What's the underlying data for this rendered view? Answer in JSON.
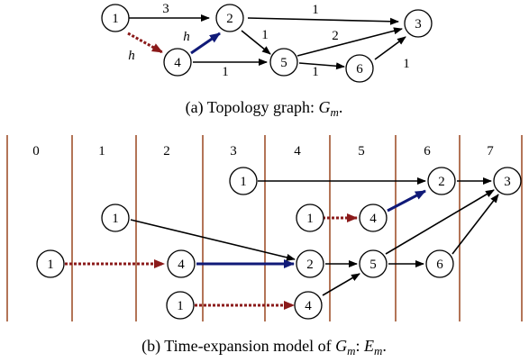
{
  "colors": {
    "background": "#ffffff",
    "edge_normal": "#000000",
    "edge_highlight": "#101a78",
    "edge_patterned": "#8b1a1a",
    "slot_divider": "#a0522d"
  },
  "topology": {
    "caption": {
      "prefix": "(a) Topology graph: ",
      "symbol": "G",
      "subscript": "m",
      "suffix": "."
    },
    "nodes": [
      "1",
      "2",
      "3",
      "4",
      "5",
      "6"
    ],
    "edges": [
      {
        "from": "1",
        "to": "2",
        "label": "3",
        "style": "normal"
      },
      {
        "from": "2",
        "to": "3",
        "label": "1",
        "style": "normal"
      },
      {
        "from": "2",
        "to": "5",
        "label": "1",
        "style": "normal"
      },
      {
        "from": "1",
        "to": "4",
        "label": "h",
        "style": "patterned"
      },
      {
        "from": "4",
        "to": "2",
        "label": "h",
        "style": "highlight"
      },
      {
        "from": "4",
        "to": "5",
        "label": "1",
        "style": "normal"
      },
      {
        "from": "5",
        "to": "3",
        "label": "2",
        "style": "normal"
      },
      {
        "from": "5",
        "to": "6",
        "label": "1",
        "style": "normal"
      },
      {
        "from": "6",
        "to": "3",
        "label": "1",
        "style": "normal"
      }
    ]
  },
  "time_expansion": {
    "caption": {
      "prefix": "(b) Time-expansion model of ",
      "symbol1": "G",
      "subscript1": "m",
      "middle": ": ",
      "symbol2": "E",
      "subscript2": "m",
      "suffix": "."
    },
    "slots": [
      "0",
      "1",
      "2",
      "3",
      "4",
      "5",
      "6",
      "7"
    ],
    "nodes": [
      {
        "label": "1",
        "slot": "3.5"
      },
      {
        "label": "2",
        "slot": "6.5"
      },
      {
        "label": "3",
        "slot": "7"
      },
      {
        "label": "1",
        "slot": "1.5"
      },
      {
        "label": "1",
        "slot": "4.5"
      },
      {
        "label": "4",
        "slot": "5.5"
      },
      {
        "label": "1",
        "slot": "0.5"
      },
      {
        "label": "4",
        "slot": "2.5"
      },
      {
        "label": "2",
        "slot": "4.5"
      },
      {
        "label": "5",
        "slot": "5.5"
      },
      {
        "label": "6",
        "slot": "6.5"
      },
      {
        "label": "1",
        "slot": "2.5"
      },
      {
        "label": "4",
        "slot": "4.5"
      }
    ]
  }
}
